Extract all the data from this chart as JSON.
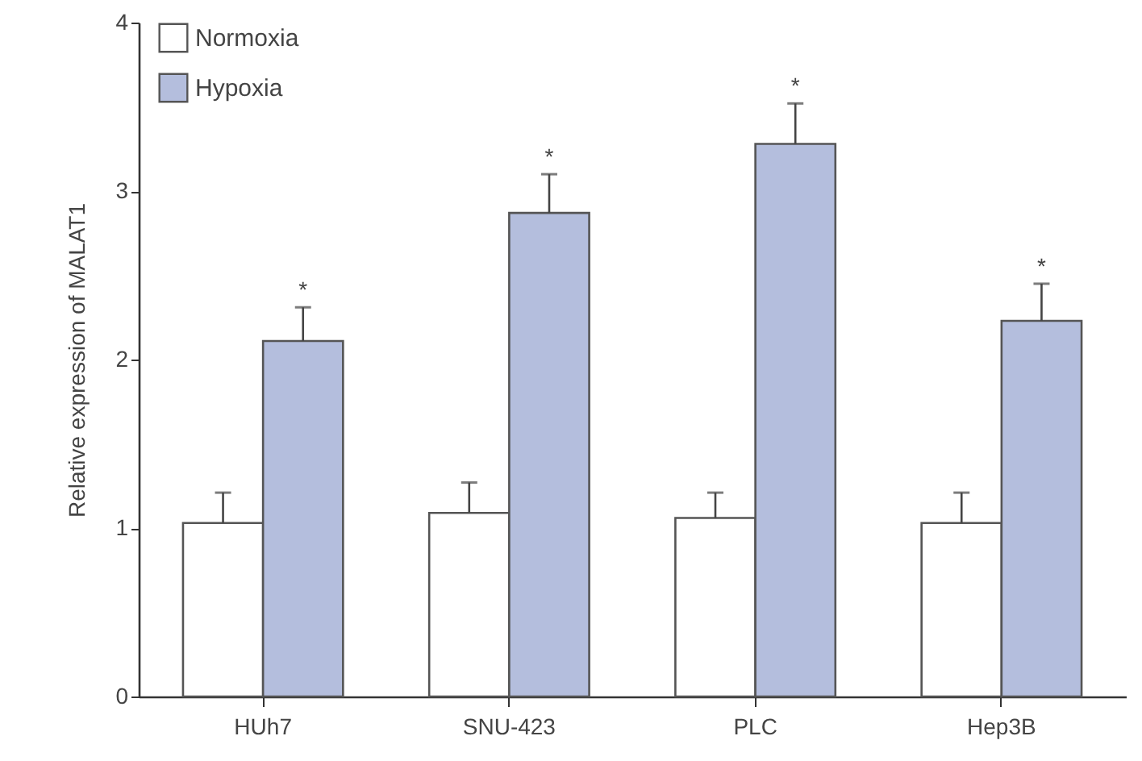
{
  "chart_data": {
    "type": "bar",
    "ylabel": "Relative expression of MALAT1",
    "categories": [
      "HUh7",
      "SNU-423",
      "PLC",
      "Hep3B"
    ],
    "series": [
      {
        "name": "Normoxia",
        "color": "#ffffff",
        "values": [
          1.03,
          1.09,
          1.06,
          1.03
        ],
        "errors": [
          [
            1.03,
            1.21
          ],
          [
            1.09,
            1.27
          ],
          [
            1.06,
            1.21
          ],
          [
            1.03,
            1.21
          ]
        ]
      },
      {
        "name": "Hypoxia",
        "color": "#b4bedd",
        "values": [
          2.11,
          2.87,
          3.28,
          2.23
        ],
        "errors": [
          [
            2.11,
            2.31
          ],
          [
            2.87,
            3.1
          ],
          [
            3.28,
            3.52
          ],
          [
            2.23,
            2.45
          ]
        ]
      }
    ],
    "ylim": [
      0,
      4
    ],
    "yticks": [
      0,
      1,
      2,
      3,
      4
    ],
    "legend": "top left",
    "annotations": [
      "*",
      "*",
      "*",
      "*"
    ]
  }
}
